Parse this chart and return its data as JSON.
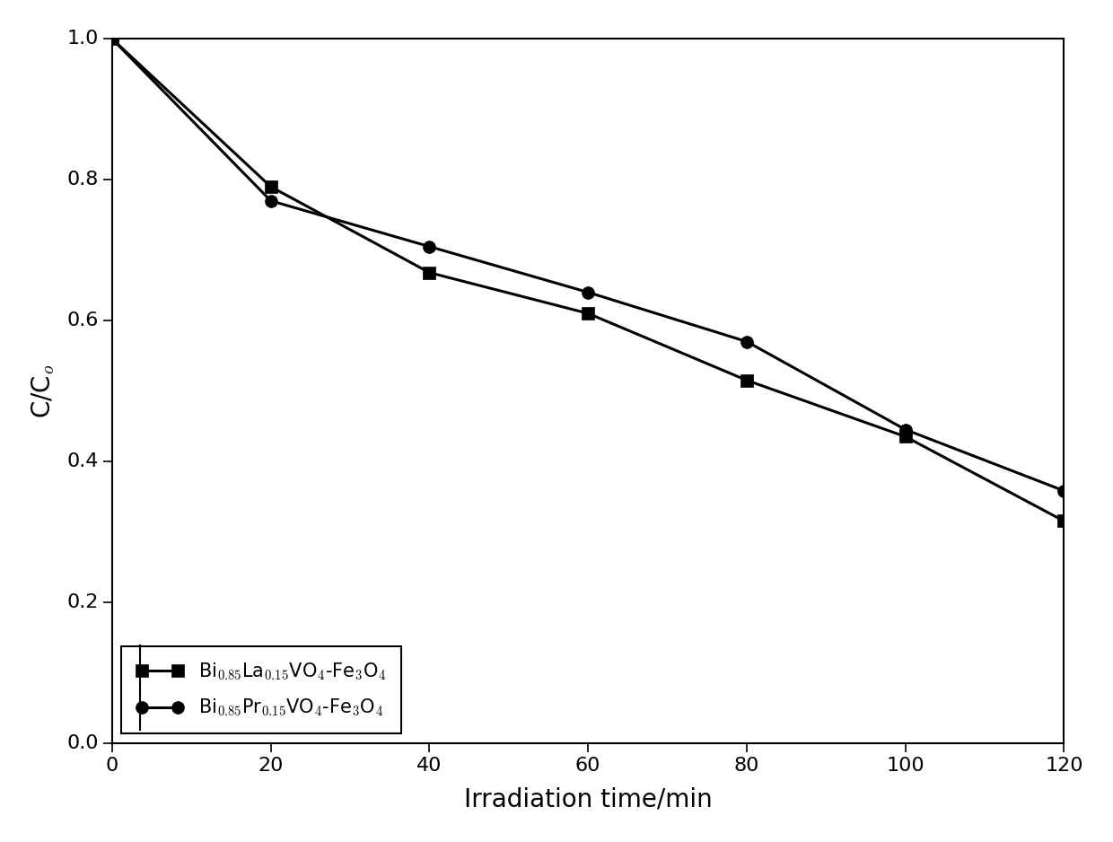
{
  "x": [
    0,
    20,
    40,
    60,
    80,
    100,
    120
  ],
  "series1_y": [
    1.0,
    0.79,
    0.668,
    0.61,
    0.515,
    0.435,
    0.315
  ],
  "series2_y": [
    1.0,
    0.77,
    0.705,
    0.64,
    0.57,
    0.445,
    0.358
  ],
  "series1_label": "Bi$_{0.85}$La$_{0.15}$VO$_4$-Fe$_3$O$_4$",
  "series2_label": "Bi$_{0.85}$Pr$_{0.15}$VO$_4$-Fe$_3$O$_4$",
  "xlabel": "Irradiation time/min",
  "ylabel": "C/C$_o$",
  "xlim": [
    0,
    120
  ],
  "ylim": [
    0.0,
    1.0
  ],
  "xticks": [
    0,
    20,
    40,
    60,
    80,
    100,
    120
  ],
  "yticks": [
    0.0,
    0.2,
    0.4,
    0.6,
    0.8,
    1.0
  ],
  "line_color": "#000000",
  "marker1": "s",
  "marker2": "o",
  "markersize": 10,
  "linewidth": 2.2,
  "figsize": [
    12.4,
    9.38
  ],
  "dpi": 100,
  "bg_color": "#d9d9d9",
  "axes_bg_color": "#ffffff"
}
